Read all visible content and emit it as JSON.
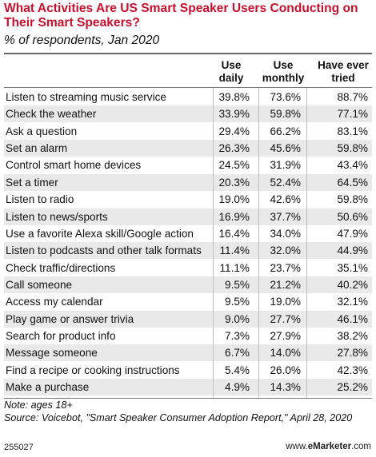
{
  "header": {
    "title": "What Activities Are US Smart Speaker Users Conducting on Their Smart Speakers?",
    "subtitle": "% of respondents, Jan 2020"
  },
  "columns": {
    "daily_line1": "Use",
    "daily_line2": "daily",
    "monthly_line1": "Use",
    "monthly_line2": "monthly",
    "ever_line1": "Have ever",
    "ever_line2": "tried"
  },
  "footer": {
    "note": "Note: ages 18+",
    "source": "Source: Voicebot, \"Smart Speaker Consumer Adoption Report,\" April 28, 2020",
    "id": "255027",
    "brand_prefix": "www.",
    "brand_name": "eMarketer",
    "brand_suffix": ".com"
  },
  "chart_data": {
    "type": "table",
    "title": "What Activities Are US Smart Speaker Users Conducting on Their Smart Speakers?",
    "subtitle": "% of respondents, Jan 2020",
    "columns": [
      "Use daily",
      "Use monthly",
      "Have ever tried"
    ],
    "rows": [
      {
        "label": "Listen to streaming music service",
        "daily": "39.8%",
        "monthly": "73.6%",
        "ever": "88.7%"
      },
      {
        "label": "Check the weather",
        "daily": "33.9%",
        "monthly": "59.8%",
        "ever": "77.1%"
      },
      {
        "label": "Ask a question",
        "daily": "29.4%",
        "monthly": "66.2%",
        "ever": "83.1%"
      },
      {
        "label": "Set an alarm",
        "daily": "26.3%",
        "monthly": "45.6%",
        "ever": "59.8%"
      },
      {
        "label": "Control smart home devices",
        "daily": "24.5%",
        "monthly": "31.9%",
        "ever": "43.4%"
      },
      {
        "label": "Set a timer",
        "daily": "20.3%",
        "monthly": "52.4%",
        "ever": "64.5%"
      },
      {
        "label": "Listen to radio",
        "daily": "19.0%",
        "monthly": "42.6%",
        "ever": "59.8%"
      },
      {
        "label": "Listen to news/sports",
        "daily": "16.9%",
        "monthly": "37.7%",
        "ever": "50.6%"
      },
      {
        "label": "Use a favorite Alexa skill/Google action",
        "daily": "16.4%",
        "monthly": "34.0%",
        "ever": "47.9%"
      },
      {
        "label": "Listen to podcasts and other talk formats",
        "daily": "11.4%",
        "monthly": "32.0%",
        "ever": "44.9%"
      },
      {
        "label": "Check traffic/directions",
        "daily": "11.1%",
        "monthly": "23.7%",
        "ever": "35.1%"
      },
      {
        "label": "Call someone",
        "daily": "9.5%",
        "monthly": "21.2%",
        "ever": "40.2%"
      },
      {
        "label": "Access my calendar",
        "daily": "9.5%",
        "monthly": "19.0%",
        "ever": "32.1%"
      },
      {
        "label": "Play game or answer trivia",
        "daily": "9.0%",
        "monthly": "27.7%",
        "ever": "46.1%"
      },
      {
        "label": "Search for product info",
        "daily": "7.3%",
        "monthly": "27.9%",
        "ever": "38.2%"
      },
      {
        "label": "Message someone",
        "daily": "6.7%",
        "monthly": "14.0%",
        "ever": "27.8%"
      },
      {
        "label": "Find a recipe or cooking instructions",
        "daily": "5.4%",
        "monthly": "26.0%",
        "ever": "42.3%"
      },
      {
        "label": "Make a purchase",
        "daily": "4.9%",
        "monthly": "14.3%",
        "ever": "25.2%"
      }
    ]
  }
}
